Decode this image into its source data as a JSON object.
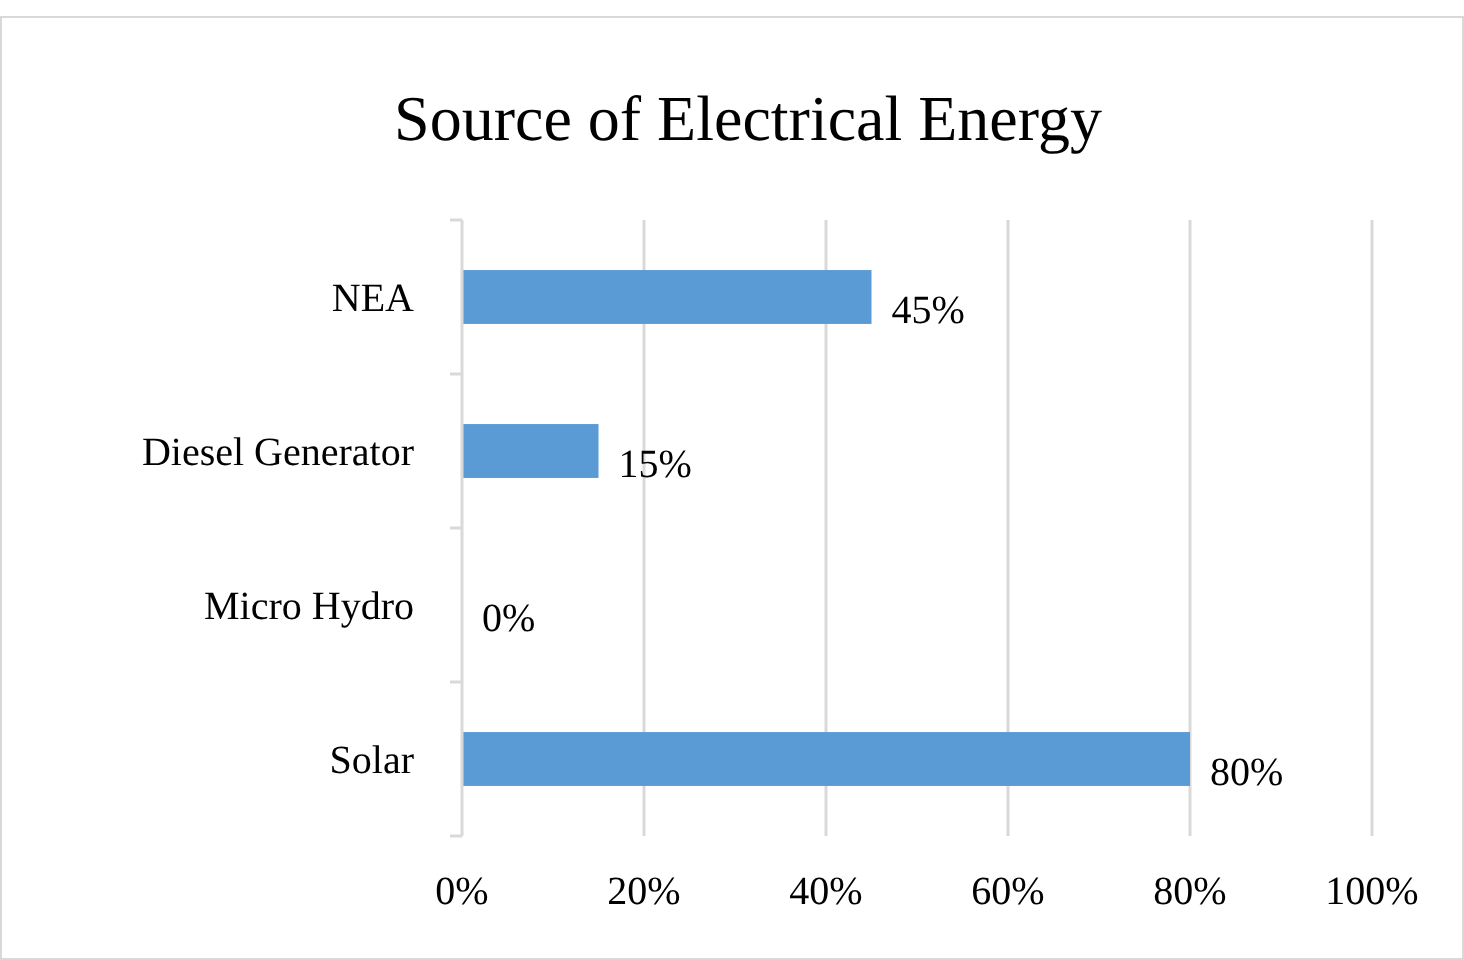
{
  "chart_data": {
    "type": "bar",
    "orientation": "horizontal",
    "title": "Source of Electrical Energy",
    "categories": [
      "NEA",
      "Diesel Generator",
      "Micro Hydro",
      "Solar"
    ],
    "values": [
      45,
      15,
      0,
      80
    ],
    "color": "#5b9bd5",
    "value_labels": [
      "45%",
      "15%",
      "0%",
      "80%"
    ],
    "xlim": [
      0,
      100
    ],
    "xticks": [
      {
        "value": 0,
        "label": "0%"
      },
      {
        "value": 20,
        "label": "20%"
      },
      {
        "value": 40,
        "label": "40%"
      },
      {
        "value": 60,
        "label": "60%"
      },
      {
        "value": 80,
        "label": "80%"
      },
      {
        "value": 100,
        "label": "100%"
      }
    ],
    "grid": "x"
  }
}
